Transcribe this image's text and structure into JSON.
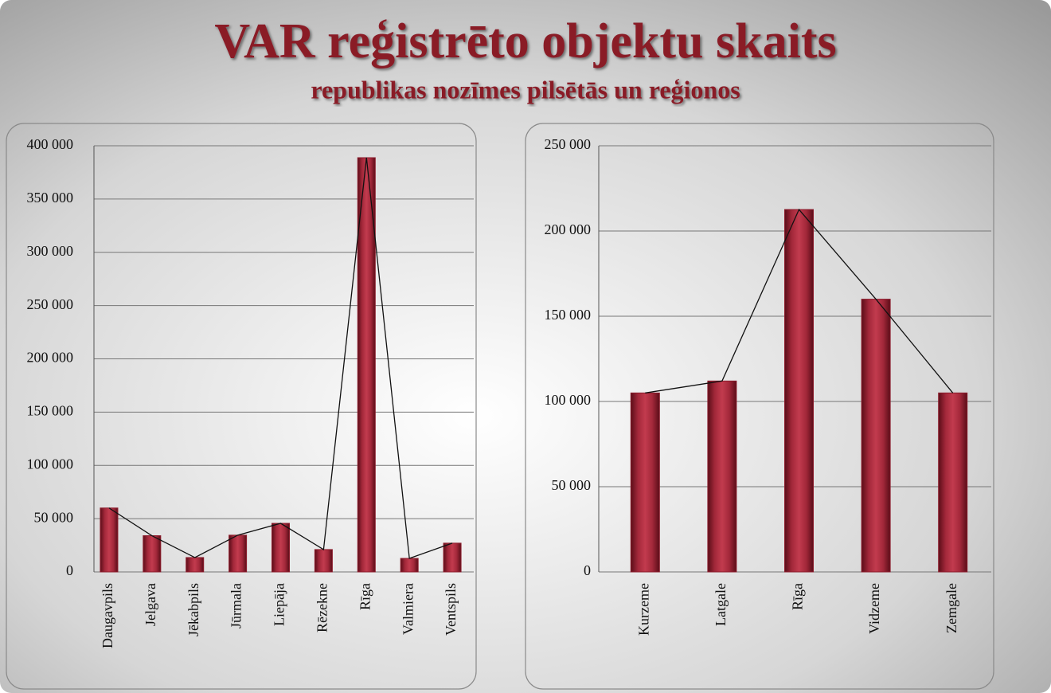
{
  "title": "VAR reģistrēto objektu skaits",
  "subtitle": "republikas nozīmes pilsētās un reģionos",
  "chart_data": [
    {
      "type": "bar",
      "overlay_line": true,
      "color": "#8c1c2c",
      "line_color": "#111111",
      "grid": true,
      "categories": [
        "Daugavpils",
        "Jelgava",
        "Jēkabpils",
        "Jūrmala",
        "Liepāja",
        "Rēzekne",
        "Rīga",
        "Valmiera",
        "Ventspils"
      ],
      "values": [
        60000,
        34000,
        13500,
        34500,
        45600,
        21000,
        388800,
        12700,
        27000
      ],
      "ylim": [
        0,
        400000
      ],
      "yticks": [
        0,
        {
          "value": 50000,
          "label": "50 000"
        },
        {
          "value": 100000,
          "label": "100 000"
        },
        {
          "value": 150000,
          "label": "150 000"
        },
        {
          "value": 200000,
          "label": "200 000"
        },
        {
          "value": 250000,
          "label": "250 000"
        },
        {
          "value": 300000,
          "label": "300 000"
        },
        {
          "value": 350000,
          "label": "350 000"
        },
        {
          "value": 400000,
          "label": "400 000"
        }
      ]
    },
    {
      "type": "bar",
      "overlay_line": true,
      "color": "#8c1c2c",
      "line_color": "#111111",
      "grid": true,
      "categories": [
        "Kurzeme",
        "Latgale",
        "Rīga",
        "Vidzeme",
        "Zemgale"
      ],
      "values": [
        105000,
        112000,
        212600,
        160000,
        105000
      ],
      "ylim": [
        0,
        250000
      ],
      "yticks": [
        0,
        {
          "value": 50000,
          "label": "50 000"
        },
        {
          "value": 100000,
          "label": "100 000"
        },
        {
          "value": 150000,
          "label": "150 000"
        },
        {
          "value": 200000,
          "label": "200 000"
        },
        {
          "value": 250000,
          "label": "250 000"
        }
      ]
    }
  ]
}
